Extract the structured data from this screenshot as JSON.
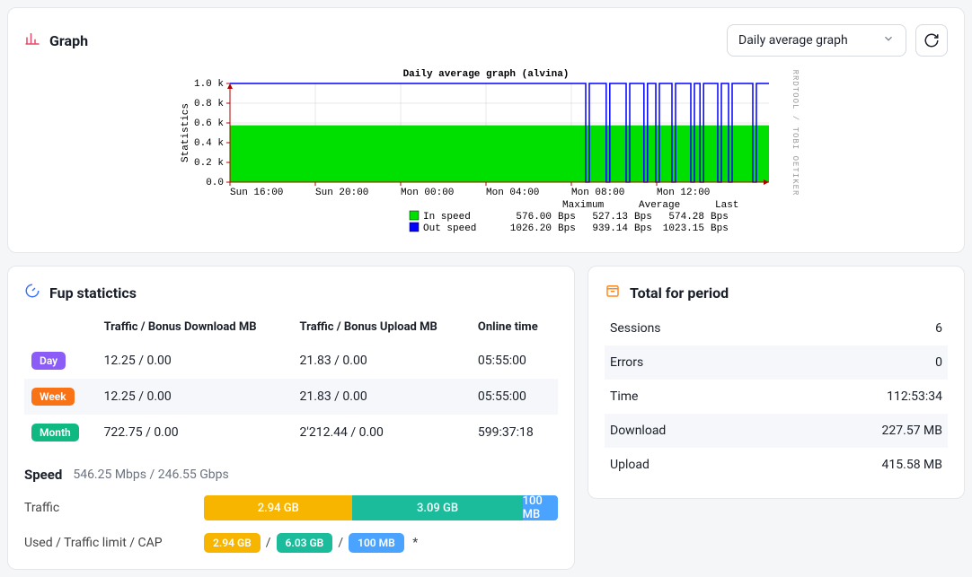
{
  "graph": {
    "title": "Graph",
    "dropdown_selected": "Daily average graph",
    "chart": {
      "type": "area-line",
      "title": "Daily average graph (alvina)",
      "ylabel": "Statistics",
      "ylim": [
        0,
        1000
      ],
      "yticks": [
        0,
        200,
        400,
        600,
        800,
        1000
      ],
      "ytick_labels": [
        "0.0",
        "0.2 k",
        "0.4 k",
        "0.6 k",
        "0.8 k",
        "1.0 k"
      ],
      "xtick_labels": [
        "Sun 16:00",
        "Sun 20:00",
        "Mon 00:00",
        "Mon 04:00",
        "Mon 08:00",
        "Mon 12:00"
      ],
      "series": {
        "in_speed": {
          "label": "In speed",
          "color": "#00e000",
          "type": "area",
          "value": 576.0
        },
        "out_speed": {
          "label": "Out speed",
          "color": "#0000ff",
          "type": "line",
          "value": 1026.2
        }
      },
      "out_dips_x": [
        0.66,
        0.698,
        0.735,
        0.768,
        0.79,
        0.82,
        0.855,
        0.872,
        0.905,
        0.925,
        0.97
      ],
      "legend_columns": [
        "",
        "",
        "Maximum",
        "",
        "Average",
        "",
        "Last",
        ""
      ],
      "legend_rows": [
        [
          "In speed",
          "576.00",
          "Bps",
          "527.13",
          "Bps",
          "574.28",
          "Bps"
        ],
        [
          "Out speed",
          "1026.20",
          "Bps",
          "939.14",
          "Bps",
          "1023.15",
          "Bps"
        ]
      ],
      "credit": "RRDTOOL / TOBI OETIKER",
      "background_color": "#ffffff",
      "grid_color": "#d0d0d0",
      "axis_color": "#b00000"
    }
  },
  "fup": {
    "title": "Fup statictics",
    "columns": [
      "",
      "Traffic / Bonus Download MB",
      "Traffic / Bonus Upload MB",
      "Online time"
    ],
    "rows": [
      {
        "label": "Day",
        "color": "#8b5cf6",
        "dl": "12.25 / 0.00",
        "ul": "21.83 / 0.00",
        "time": "05:55:00"
      },
      {
        "label": "Week",
        "color": "#f97316",
        "dl": "12.25 / 0.00",
        "ul": "21.83 / 0.00",
        "time": "05:55:00"
      },
      {
        "label": "Month",
        "color": "#10b981",
        "dl": "722.75 / 0.00",
        "ul": "2'212.44 / 0.00",
        "time": "599:37:18"
      }
    ],
    "speed_label": "Speed",
    "speed_value": "546.25 Mbps / 246.55 Gbps",
    "traffic_label": "Traffic",
    "traffic_segments": [
      {
        "text": "2.94 GB",
        "color": "#f7b500",
        "pct": 42
      },
      {
        "text": "3.09 GB",
        "color": "#1abc9c",
        "pct": 48
      },
      {
        "text": "100 MB",
        "color": "#4aa3ff",
        "pct": 10
      }
    ],
    "limit_label": "Used / Traffic limit / CAP",
    "limit_pills": [
      {
        "text": "2.94 GB",
        "color": "#f7b500"
      },
      {
        "text": "6.03 GB",
        "color": "#1abc9c"
      },
      {
        "text": "100 MB",
        "color": "#4aa3ff"
      }
    ],
    "limit_suffix": "*"
  },
  "totals": {
    "title": "Total for period",
    "rows": [
      {
        "k": "Sessions",
        "v": "6"
      },
      {
        "k": "Errors",
        "v": "0"
      },
      {
        "k": "Time",
        "v": "112:53:34"
      },
      {
        "k": "Download",
        "v": "227.57 MB"
      },
      {
        "k": "Upload",
        "v": "415.58 MB"
      }
    ]
  }
}
